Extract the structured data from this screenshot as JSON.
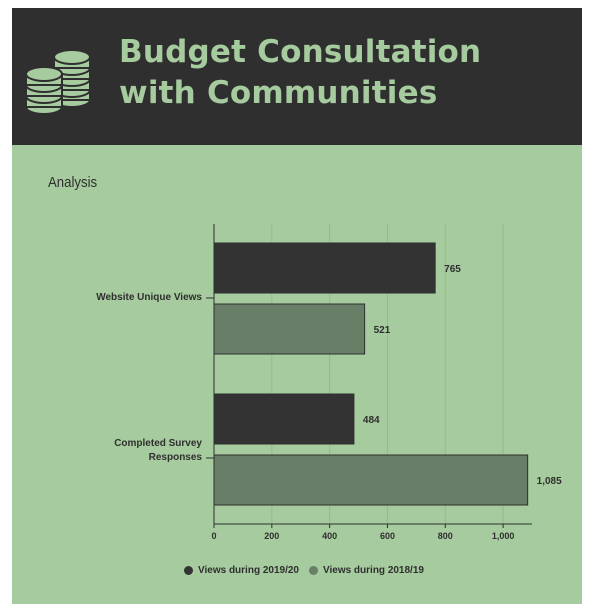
{
  "header": {
    "title_line1": "Budget Consultation",
    "title_line2": "with Communities"
  },
  "section": {
    "label": "Analysis"
  },
  "colors": {
    "background": "#a6cb9e",
    "header_bg": "#2f2f2f",
    "series_2019_20": "#333333",
    "series_2018_19": "#697e66"
  },
  "chart_data": {
    "type": "bar",
    "orientation": "horizontal",
    "categories": [
      "Website Unique Views",
      "Completed Survey Responses"
    ],
    "series": [
      {
        "name": "Views during 2019/20",
        "values": [
          765,
          484
        ],
        "labels": [
          "765",
          "484"
        ]
      },
      {
        "name": "Views during 2018/19",
        "values": [
          521,
          1085
        ],
        "labels": [
          "521",
          "1,085"
        ]
      }
    ],
    "xlim": [
      0,
      1100
    ],
    "xticks": [
      0,
      200,
      400,
      600,
      800,
      1000
    ],
    "xtick_labels": [
      "0",
      "200",
      "400",
      "600",
      "800",
      "1,000"
    ],
    "grid": true,
    "legend_position": "bottom"
  }
}
